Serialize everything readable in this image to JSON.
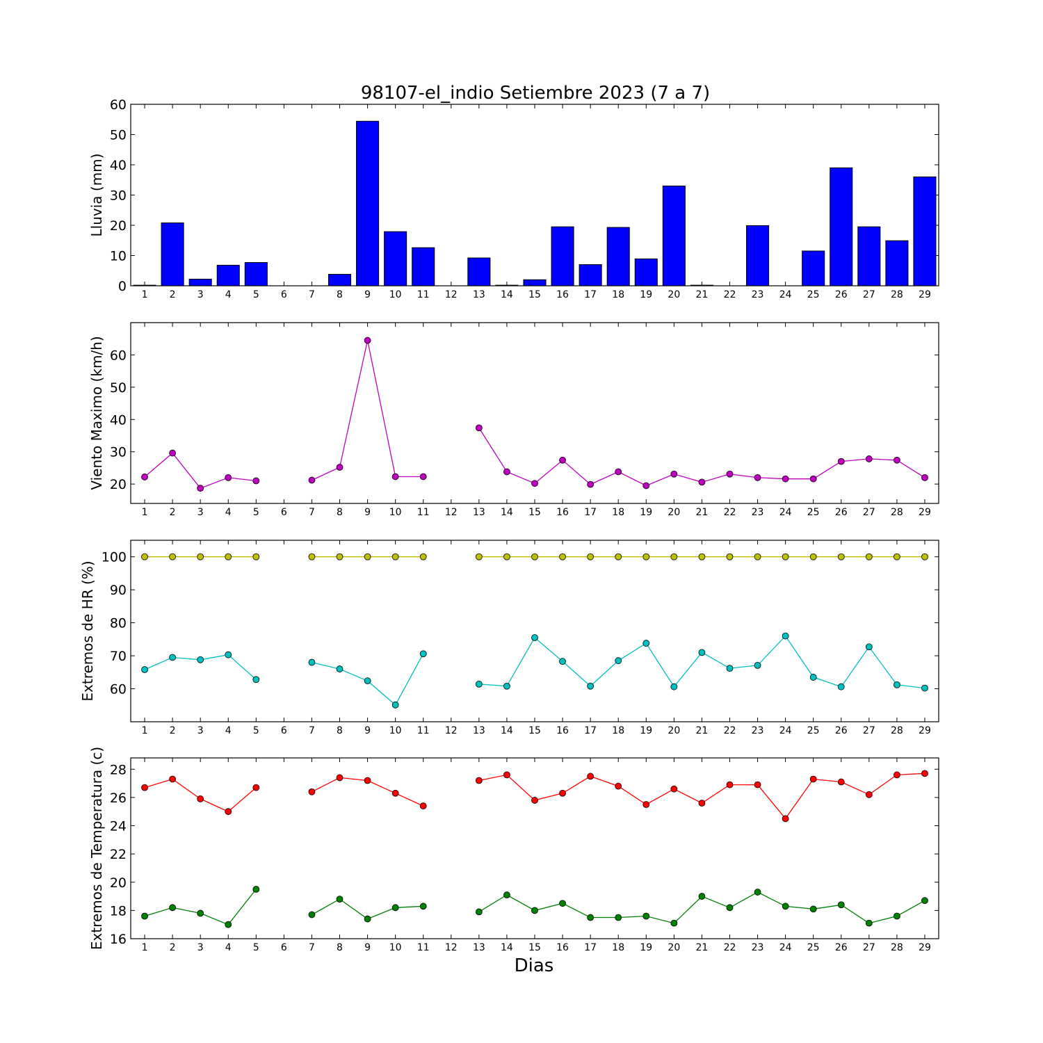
{
  "title": "98107-el_indio Setiembre 2023  (7 a 7)",
  "xlabel": "Dias",
  "colors": {
    "rain": "#0000ff",
    "wind": "#bf00bf",
    "hr_max": "#bfbf00",
    "hr_min": "#00bfbf",
    "temp_max": "#ff0000",
    "temp_min": "#008000"
  },
  "chart_data": [
    {
      "type": "bar",
      "ylabel": "Lluvia (mm)",
      "xlabel": "",
      "categories": [
        "1",
        "2",
        "3",
        "4",
        "5",
        "6",
        "7",
        "8",
        "9",
        "10",
        "11",
        "12",
        "13",
        "14",
        "15",
        "16",
        "17",
        "18",
        "19",
        "20",
        "21",
        "22",
        "23",
        "24",
        "25",
        "26",
        "27",
        "28",
        "29"
      ],
      "values": [
        0.2,
        20.8,
        2.2,
        6.8,
        7.7,
        0,
        0,
        3.8,
        54.4,
        17.9,
        12.6,
        0,
        9.2,
        0.2,
        2.0,
        19.5,
        7.0,
        19.3,
        8.9,
        33.0,
        0.2,
        0,
        19.9,
        0,
        11.5,
        39.0,
        19.5,
        14.9,
        36.0
      ],
      "ylim": [
        0,
        60
      ],
      "yticks": [
        0,
        10,
        20,
        30,
        40,
        50,
        60
      ],
      "color": "#0000ff"
    },
    {
      "type": "line",
      "ylabel": "Viento Maximo (km/h)",
      "xlabel": "",
      "x": [
        1,
        2,
        3,
        4,
        5,
        6,
        7,
        8,
        9,
        10,
        11,
        12,
        13,
        14,
        15,
        16,
        17,
        18,
        19,
        20,
        21,
        22,
        23,
        24,
        25,
        26,
        27,
        28,
        29
      ],
      "series": [
        {
          "color": "#bf00bf",
          "values": [
            22.2,
            29.6,
            18.7,
            22.0,
            21.0,
            null,
            21.2,
            25.2,
            64.5,
            22.3,
            22.3,
            null,
            37.4,
            23.8,
            20.2,
            27.4,
            19.9,
            23.8,
            19.5,
            23.1,
            20.6,
            23.1,
            22.0,
            21.6,
            21.6,
            27.0,
            27.8,
            27.4,
            22.0
          ]
        }
      ],
      "ylim": [
        14,
        70
      ],
      "yticks": [
        20,
        30,
        40,
        50,
        60
      ]
    },
    {
      "type": "line",
      "ylabel": "Extremos de HR (%)",
      "xlabel": "",
      "x": [
        1,
        2,
        3,
        4,
        5,
        6,
        7,
        8,
        9,
        10,
        11,
        12,
        13,
        14,
        15,
        16,
        17,
        18,
        19,
        20,
        21,
        22,
        23,
        24,
        25,
        26,
        27,
        28,
        29
      ],
      "series": [
        {
          "color": "#bfbf00",
          "values": [
            100,
            100,
            100,
            100,
            100,
            null,
            100,
            100,
            100,
            100,
            100,
            null,
            100,
            100,
            100,
            100,
            100,
            100,
            100,
            100,
            100,
            100,
            100,
            100,
            100,
            100,
            100,
            100,
            100
          ]
        },
        {
          "color": "#00bfbf",
          "values": [
            65.8,
            69.5,
            68.8,
            70.3,
            62.8,
            null,
            68.0,
            66.0,
            62.4,
            55.1,
            70.6,
            null,
            61.4,
            60.8,
            75.5,
            68.3,
            60.8,
            68.5,
            73.8,
            60.6,
            71.0,
            66.2,
            67.1,
            76.0,
            63.5,
            60.6,
            72.7,
            61.2,
            60.2
          ]
        }
      ],
      "ylim": [
        50,
        105
      ],
      "yticks": [
        60,
        70,
        80,
        90,
        100
      ]
    },
    {
      "type": "line",
      "ylabel": "Extremos de Temperatura (c)",
      "xlabel": "Dias",
      "x": [
        1,
        2,
        3,
        4,
        5,
        6,
        7,
        8,
        9,
        10,
        11,
        12,
        13,
        14,
        15,
        16,
        17,
        18,
        19,
        20,
        21,
        22,
        23,
        24,
        25,
        26,
        27,
        28,
        29
      ],
      "series": [
        {
          "color": "#ff0000",
          "values": [
            26.7,
            27.3,
            25.9,
            25.0,
            26.7,
            null,
            26.4,
            27.4,
            27.2,
            26.3,
            25.4,
            null,
            27.2,
            27.6,
            25.8,
            26.3,
            27.5,
            26.8,
            25.5,
            26.6,
            25.6,
            26.9,
            26.9,
            24.5,
            27.3,
            27.1,
            26.2,
            27.6,
            27.7
          ]
        },
        {
          "color": "#008000",
          "values": [
            17.6,
            18.2,
            17.8,
            17.0,
            19.5,
            null,
            17.7,
            18.8,
            17.4,
            18.2,
            18.3,
            null,
            17.9,
            19.1,
            18.0,
            18.5,
            17.5,
            17.5,
            17.6,
            17.1,
            19.0,
            18.2,
            19.3,
            18.3,
            18.1,
            18.4,
            17.1,
            17.6,
            18.7
          ]
        }
      ],
      "ylim": [
        16,
        28.8
      ],
      "yticks": [
        16,
        18,
        20,
        22,
        24,
        26,
        28
      ]
    }
  ]
}
